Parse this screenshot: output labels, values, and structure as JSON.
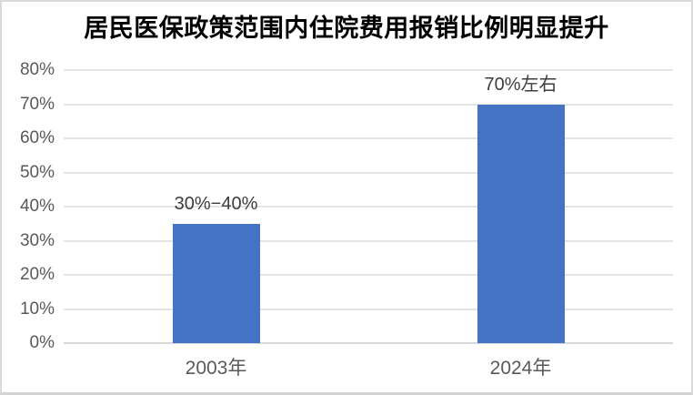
{
  "chart_data": {
    "type": "bar",
    "title": "居民医保政策范围内住院费用报销比例明显提升",
    "categories": [
      "2003年",
      "2024年"
    ],
    "values": [
      35,
      70
    ],
    "data_labels": [
      "30%−40%",
      "70%左右"
    ],
    "xlabel": "",
    "ylabel": "",
    "ylim": [
      0,
      80
    ],
    "yticks": [
      0,
      10,
      20,
      30,
      40,
      50,
      60,
      70,
      80
    ],
    "ytick_labels": [
      "0%",
      "10%",
      "20%",
      "30%",
      "40%",
      "50%",
      "60%",
      "70%",
      "80%"
    ],
    "grid": true,
    "legend": false,
    "colors": {
      "bar": "#4472C4",
      "gridline": "#e4e4e4",
      "axis_line": "#d8d8d8",
      "tick_label": "#595959",
      "data_label": "#3d3d3d",
      "title": "#000000"
    }
  }
}
